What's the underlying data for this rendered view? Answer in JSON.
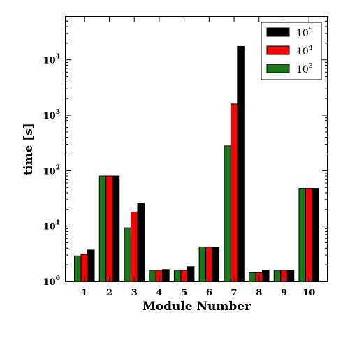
{
  "chart_data": {
    "type": "bar",
    "title": "",
    "xlabel": "Module Number",
    "ylabel": "time [s]",
    "y_scale": "log",
    "ylim": [
      1,
      60000
    ],
    "grid": false,
    "legend_position": "top-right",
    "categories": [
      "1",
      "2",
      "3",
      "4",
      "5",
      "6",
      "7",
      "8",
      "9",
      "10"
    ],
    "y_ticks": [
      {
        "value": 1,
        "base": "10",
        "exp": "0"
      },
      {
        "value": 10,
        "base": "10",
        "exp": "1"
      },
      {
        "value": 100,
        "base": "10",
        "exp": "2"
      },
      {
        "value": 1000,
        "base": "10",
        "exp": "3"
      },
      {
        "value": 10000,
        "base": "10",
        "exp": "4"
      }
    ],
    "series": [
      {
        "name_base": "10",
        "name_exp": "3",
        "color": "#1a7a1a",
        "values": [
          2.9,
          80,
          9.3,
          1.6,
          1.6,
          4.2,
          280,
          1.45,
          1.6,
          48
        ]
      },
      {
        "name_base": "10",
        "name_exp": "4",
        "color": "#ff0000",
        "values": [
          3.1,
          80,
          18,
          1.6,
          1.6,
          4.2,
          1600,
          1.45,
          1.6,
          48
        ]
      },
      {
        "name_base": "10",
        "name_exp": "5",
        "color": "#000000",
        "values": [
          3.7,
          80,
          26,
          1.65,
          1.85,
          4.2,
          17500,
          1.6,
          1.6,
          48
        ]
      }
    ],
    "legend_order": [
      2,
      1,
      0
    ]
  }
}
